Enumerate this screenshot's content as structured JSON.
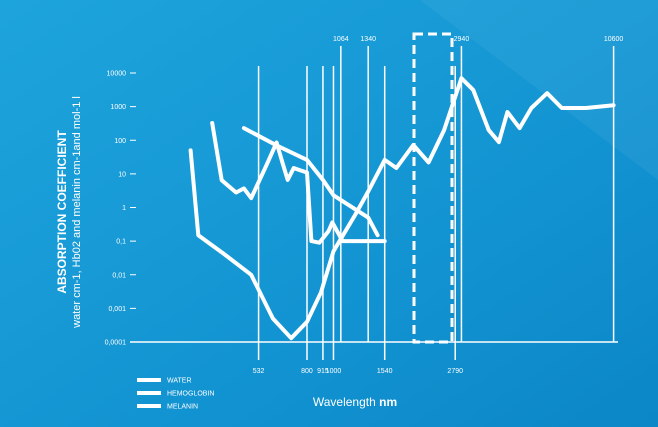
{
  "chart_data": {
    "type": "line",
    "y_label": "ABSORPTION COEFFICIENT",
    "y_sublabel": "water cm-1, Hb02 and melanin cm-1and mol-1 l",
    "x_label": "Wavelength",
    "x_unit": "nm",
    "x_log": true,
    "y_log": true,
    "xlim": [
      180,
      11000
    ],
    "ylim": [
      0.0001,
      10000
    ],
    "xticks": [
      532,
      800,
      915,
      1000,
      1540,
      2790
    ],
    "xticks_top": [
      1064,
      1340,
      2940,
      10600
    ],
    "yticks": [
      {
        "value": 0.0001,
        "label": "0,0001"
      },
      {
        "value": 0.001,
        "label": "0,001"
      },
      {
        "value": 0.01,
        "label": "0,01"
      },
      {
        "value": 0.1,
        "label": "0,1"
      },
      1,
      10,
      100,
      1000,
      10000
    ],
    "series": [
      {
        "name": "WATER",
        "color": "#ffffff",
        "x": [
          300,
          320,
          400,
          500,
          600,
          700,
          800,
          900,
          1000,
          1200,
          1340,
          1540,
          1700,
          1960,
          2230,
          2540,
          2940,
          3250,
          3700,
          4030,
          4330,
          4800,
          5300,
          6050,
          6850,
          8400,
          10600
        ],
        "values": [
          50,
          0.15,
          0.04,
          0.01,
          0.0005,
          0.00013,
          0.0004,
          0.003,
          0.05,
          0.6,
          3,
          26,
          15,
          72,
          22,
          200,
          7000,
          3100,
          200,
          88,
          690,
          230,
          910,
          2500,
          910,
          910,
          1100
        ]
      },
      {
        "name": "HEMOGLOBIN",
        "color": "#ffffff",
        "x": [
          360,
          390,
          440,
          470,
          500,
          568,
          619,
          650,
          680,
          715,
          750,
          800,
          830,
          888,
          960,
          990,
          1080,
          1400,
          1540
        ],
        "values": [
          325,
          6.5,
          2.8,
          3.7,
          1.9,
          18,
          86,
          22,
          6.6,
          15,
          13,
          11,
          0.1,
          0.09,
          0.2,
          0.36,
          0.1,
          0.1,
          0.1
        ]
      },
      {
        "name": "MELANIN",
        "color": "#ffffff",
        "x": [
          470,
          620,
          800,
          915,
          1000,
          1340,
          1450
        ],
        "values": [
          230,
          70,
          26,
          6.6,
          2.3,
          0.5,
          0.15
        ]
      }
    ]
  }
}
